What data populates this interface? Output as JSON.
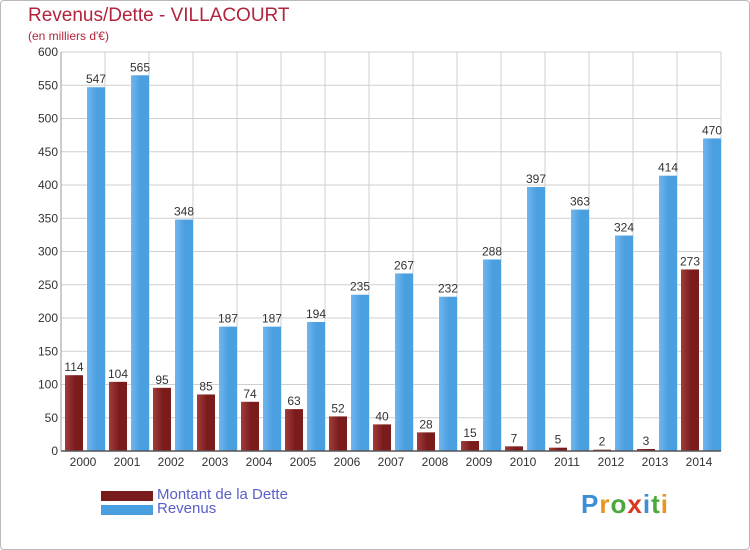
{
  "header": {
    "title": "Revenus/Dette - VILLACOURT",
    "subtitle": "(en milliers d'€)"
  },
  "legend": {
    "debt_label": "Montant de la Dette",
    "revenue_label": "Revenus"
  },
  "logo": {
    "text": "Proxiti",
    "letters": [
      "P",
      "r",
      "o",
      "x",
      "i",
      "t",
      "i"
    ],
    "letter_colors": [
      "#3a8fd6",
      "#e8951f",
      "#4aa83c",
      "#d9361f",
      "#3a8fd6",
      "#4aa83c",
      "#e8951f"
    ]
  },
  "colors": {
    "debt": "#7a1c1c",
    "debt_light": "#a33c3c",
    "revenue": "#4a9fe0",
    "revenue_light": "#6fb6ee",
    "grid": "#cfcfcf",
    "text": "#333333",
    "title": "#b2243d"
  },
  "chart_data": {
    "type": "bar",
    "title": "Revenus/Dette - VILLACOURT",
    "subtitle": "(en milliers d'€)",
    "xlabel": "",
    "ylabel": "",
    "ylim": [
      0,
      600
    ],
    "yticks": [
      0,
      50,
      100,
      150,
      200,
      250,
      300,
      350,
      400,
      450,
      500,
      550,
      600
    ],
    "grid": true,
    "legend_position": "bottom-left",
    "categories": [
      "2000",
      "2001",
      "2002",
      "2003",
      "2004",
      "2005",
      "2006",
      "2007",
      "2008",
      "2009",
      "2010",
      "2011",
      "2012",
      "2013",
      "2014"
    ],
    "series": [
      {
        "name": "Montant de la Dette",
        "values": [
          114,
          104,
          95,
          85,
          74,
          63,
          52,
          40,
          28,
          15,
          7,
          5,
          2,
          3,
          273
        ]
      },
      {
        "name": "Revenus",
        "values": [
          547,
          565,
          348,
          187,
          187,
          194,
          235,
          267,
          232,
          288,
          397,
          363,
          324,
          414,
          470
        ]
      }
    ]
  }
}
